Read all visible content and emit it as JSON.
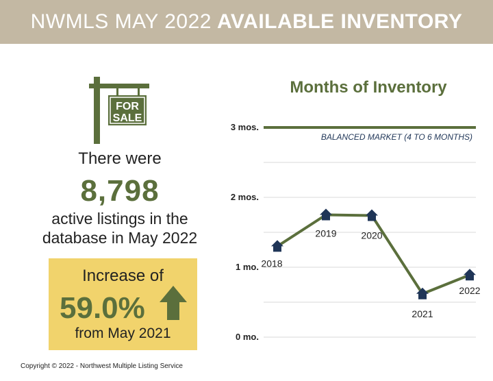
{
  "banner": {
    "title_regular": "NWMLS MAY 2022",
    "title_bold": "AVAILABLE INVENTORY"
  },
  "sign": {
    "line1": "FOR",
    "line2": "SALE",
    "icon": "for-sale-sign-icon"
  },
  "summary": {
    "there_were": "There were",
    "count": "8,798",
    "line1": "active listings in the",
    "line2": "database in May 2022"
  },
  "increase": {
    "label": "Increase of",
    "value": "59.0%",
    "from": "from May 2021",
    "icon": "up-arrow-icon"
  },
  "copyright": "Copyright © 2022 - Northwest Multiple Listing Service",
  "colors": {
    "banner": "#c3b8a3",
    "green": "#5b6f3c",
    "navy": "#1f3557",
    "box": "#f1d36c"
  },
  "chart_data": {
    "type": "line",
    "title": "Months of Inventory",
    "categories": [
      "2018",
      "2019",
      "2020",
      "2021",
      "2022"
    ],
    "values": [
      1.3,
      1.75,
      1.74,
      0.62,
      0.89
    ],
    "ylim": [
      0,
      3
    ],
    "yticks": [
      {
        "value": 0,
        "label": "0 mo."
      },
      {
        "value": 1,
        "label": "1 mo."
      },
      {
        "value": 2,
        "label": "2 mos."
      },
      {
        "value": 3,
        "label": "3 mos."
      }
    ],
    "reference_line": {
      "value": 3,
      "label": "BALANCED MARKET (4 TO 6 MONTHS)"
    },
    "grid": true,
    "marker": "house-icon"
  }
}
